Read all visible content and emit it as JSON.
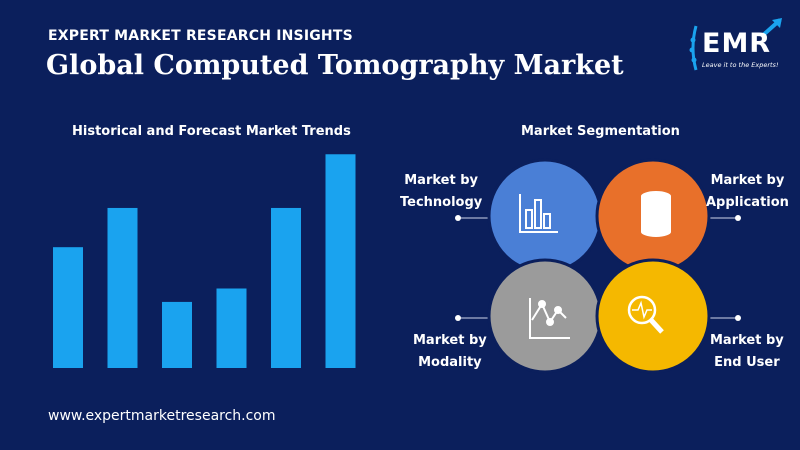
{
  "header": {
    "kicker": "EXPERT MARKET RESEARCH INSIGHTS",
    "title": "Global Computed Tomography Market"
  },
  "logo": {
    "text": "EMR",
    "tagline": "Leave it to the Experts!"
  },
  "chart_data": {
    "type": "bar",
    "title": "Historical and Forecast Market Trends",
    "categories": [
      "",
      "",
      "",
      "",
      "",
      ""
    ],
    "values": [
      117,
      155,
      64,
      77,
      155,
      207
    ],
    "bar_color": "#1aa3ef",
    "ylim": [
      0,
      215
    ],
    "grid": false
  },
  "segmentation": {
    "title": "Market Segmentation",
    "items": [
      {
        "line1": "Market by",
        "line2": "Technology",
        "color": "#4a7fd6",
        "icon": "bar-chart-icon"
      },
      {
        "line1": "Market by",
        "line2": "Application",
        "color": "#e8702a",
        "icon": "database-icon"
      },
      {
        "line1": "Market by",
        "line2": "Modality",
        "color": "#9b9b9b",
        "icon": "line-chart-icon"
      },
      {
        "line1": "Market by",
        "line2": "End User",
        "color": "#f5b800",
        "icon": "magnifier-pulse-icon"
      }
    ]
  },
  "footer": {
    "url": "www.expertmarketresearch.com"
  },
  "colors": {
    "background": "#0b1f5c",
    "bar": "#1aa3ef"
  }
}
